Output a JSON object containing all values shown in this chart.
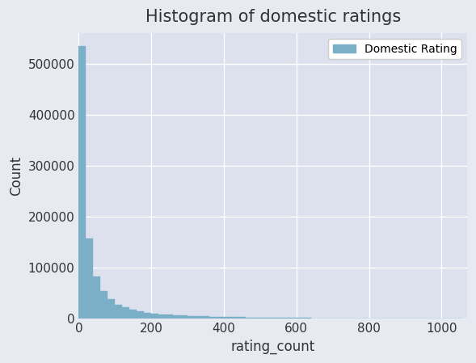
{
  "title": "Histogram of domestic ratings",
  "xlabel": "rating_count",
  "ylabel": "Count",
  "bar_color": "#7bafc7",
  "bar_edge_color": "#7bafc7",
  "background_color": "#e8eaf2",
  "axes_background_color": "#dde1ed",
  "grid_color": "white",
  "legend_label": "Domestic Rating",
  "xlim": [
    0,
    1070
  ],
  "ylim": [
    0,
    560000
  ],
  "yticks": [
    0,
    100000,
    200000,
    300000,
    400000,
    500000
  ],
  "xticks": [
    0,
    200,
    400,
    600,
    800,
    1000
  ],
  "bin_width": 20,
  "bin_centers": [
    10,
    30,
    50,
    70,
    90,
    110,
    130,
    150,
    170,
    190,
    210,
    230,
    250,
    270,
    290,
    310,
    330,
    350,
    370,
    390
  ],
  "bar_heights": [
    535000,
    157000,
    82000,
    55000,
    38000,
    28000,
    22000,
    17000,
    14000,
    11500,
    9800,
    8600,
    7700,
    7000,
    6300,
    5700,
    5200,
    4700,
    4200,
    3800
  ],
  "small_bin_centers": [
    410,
    430,
    450,
    470,
    490,
    510,
    530,
    550,
    570,
    590,
    610,
    630,
    650,
    670,
    690,
    710,
    730,
    750,
    770,
    790,
    810,
    830,
    850,
    870,
    890,
    910,
    930,
    950,
    970,
    990,
    1010,
    1030,
    1050
  ],
  "small_bar_heights": [
    3400,
    3100,
    2800,
    2600,
    2300,
    2100,
    1900,
    1700,
    1600,
    1400,
    1300,
    1200,
    1100,
    1000,
    900,
    800,
    750,
    700,
    650,
    600,
    550,
    500,
    450,
    400,
    370,
    340,
    310,
    290,
    270,
    250,
    220,
    200,
    180
  ],
  "title_fontsize": 15,
  "label_fontsize": 12,
  "tick_fontsize": 11
}
